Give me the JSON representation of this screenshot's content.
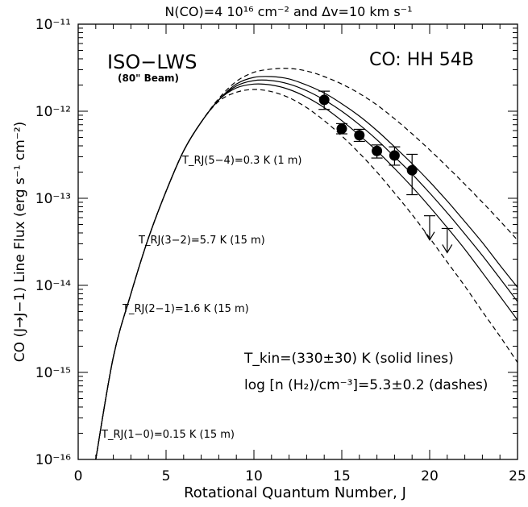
{
  "chart_data": {
    "type": "scatter",
    "title": "N(CO)=4 10¹⁶ cm⁻² and Δv=10 km s⁻¹",
    "xlabel": "Rotational Quantum Number, J",
    "ylabel": "CO (J→J−1) Line Flux (erg s⁻¹ cm⁻²)",
    "xlim": [
      0,
      25
    ],
    "ylim": [
      1e-16,
      1e-11
    ],
    "yscale": "log",
    "x_ticks": [
      "0",
      "5",
      "10",
      "15",
      "20",
      "25"
    ],
    "y_ticks": [
      "10⁻¹¹",
      "10⁻¹²",
      "10⁻¹³",
      "10⁻¹⁴",
      "10⁻¹⁵",
      "10⁻¹⁶"
    ],
    "instrument_label": "ISO−LWS",
    "beam_label": "(80\" Beam)",
    "object_label": "CO:  HH 54B",
    "transition_annotations": [
      "T_RJ(5−4)=0.3 K (1 m)",
      "T_RJ(3−2)=5.7 K (15 m)",
      "T_RJ(2−1)=1.6 K (15 m)",
      "T_RJ(1−0)=0.15 K (15 m)"
    ],
    "fit_text_1": "T_kin=(330±30) K (solid lines)",
    "fit_text_2": "log [n (H₂)/cm⁻³]=5.3±0.2 (dashes)",
    "observations": [
      {
        "J": 14,
        "flux": 1.35e-12,
        "err_low": 1.05e-12,
        "err_high": 1.7e-12
      },
      {
        "J": 15,
        "flux": 6.3e-13,
        "err_low": 5.5e-13,
        "err_high": 7.2e-13
      },
      {
        "J": 16,
        "flux": 5.3e-13,
        "err_low": 4.5e-13,
        "err_high": 6.2e-13
      },
      {
        "J": 17,
        "flux": 3.5e-13,
        "err_low": 2.9e-13,
        "err_high": 4.1e-13
      },
      {
        "J": 18,
        "flux": 3.1e-13,
        "err_low": 2.4e-13,
        "err_high": 3.9e-13
      },
      {
        "J": 19,
        "flux": 2.1e-13,
        "err_low": 1.1e-13,
        "err_high": 3.2e-13
      }
    ],
    "upper_limits": [
      {
        "J": 20,
        "flux": 6.3e-14
      },
      {
        "J": 21,
        "flux": 4.5e-14
      }
    ],
    "series": [
      {
        "style": "solid",
        "x": [
          1,
          2,
          3,
          4,
          5,
          6,
          7,
          8,
          9,
          10,
          11,
          12,
          13,
          14,
          15,
          16,
          17,
          18,
          19,
          20,
          21,
          22,
          23,
          24,
          25
        ],
        "values": [
          1e-16,
          1.5e-15,
          8e-15,
          3.5e-14,
          1.2e-13,
          3.5e-13,
          7.5e-13,
          1.35e-12,
          1.85e-12,
          2.05e-12,
          2e-12,
          1.78e-12,
          1.45e-12,
          1.1e-12,
          7.8e-13,
          5.3e-13,
          3.5e-13,
          2.2e-13,
          1.35e-13,
          8e-14,
          4.6e-14,
          2.6e-14,
          1.4e-14,
          7.5e-15,
          4e-15
        ]
      },
      {
        "style": "solid",
        "x": [
          1,
          2,
          3,
          4,
          5,
          6,
          7,
          8,
          9,
          10,
          11,
          12,
          13,
          14,
          15,
          16,
          17,
          18,
          19,
          20,
          21,
          22,
          23,
          24,
          25
        ],
        "values": [
          1e-16,
          1.5e-15,
          8e-15,
          3.5e-14,
          1.2e-13,
          3.5e-13,
          7.5e-13,
          1.35e-12,
          1.95e-12,
          2.25e-12,
          2.25e-12,
          2.05e-12,
          1.72e-12,
          1.35e-12,
          1e-12,
          7e-13,
          4.7e-13,
          3e-13,
          1.9e-13,
          1.15e-13,
          6.8e-14,
          3.9e-14,
          2.2e-14,
          1.2e-14,
          6.5e-15
        ]
      },
      {
        "style": "solid",
        "x": [
          1,
          2,
          3,
          4,
          5,
          6,
          7,
          8,
          9,
          10,
          11,
          12,
          13,
          14,
          15,
          16,
          17,
          18,
          19,
          20,
          21,
          22,
          23,
          24,
          25
        ],
        "values": [
          1e-16,
          1.5e-15,
          8e-15,
          3.5e-14,
          1.2e-13,
          3.5e-13,
          7.5e-13,
          1.35e-12,
          2.05e-12,
          2.45e-12,
          2.5e-12,
          2.35e-12,
          2e-12,
          1.62e-12,
          1.22e-12,
          8.8e-13,
          6e-13,
          3.9e-13,
          2.5e-13,
          1.55e-13,
          9.3e-14,
          5.4e-14,
          3.1e-14,
          1.7e-14,
          9.5e-15
        ]
      },
      {
        "style": "dashed",
        "x": [
          1,
          2,
          3,
          4,
          5,
          6,
          7,
          8,
          9,
          10,
          11,
          12,
          13,
          14,
          15,
          16,
          17,
          18,
          19,
          20,
          21,
          22,
          23,
          24,
          25
        ],
        "values": [
          1e-16,
          1.5e-15,
          8e-15,
          3.5e-14,
          1.2e-13,
          3.5e-13,
          7.5e-13,
          1.3e-12,
          1.65e-12,
          1.78e-12,
          1.68e-12,
          1.43e-12,
          1.1e-12,
          7.8e-13,
          5.2e-13,
          3.3e-13,
          2e-13,
          1.15e-13,
          6.5e-14,
          3.5e-14,
          1.85e-14,
          9.8e-15,
          5e-15,
          2.6e-15,
          1.3e-15
        ]
      },
      {
        "style": "dashed",
        "x": [
          1,
          2,
          3,
          4,
          5,
          6,
          7,
          8,
          9,
          10,
          11,
          12,
          13,
          14,
          15,
          16,
          17,
          18,
          19,
          20,
          21,
          22,
          23,
          24,
          25
        ],
        "values": [
          1e-16,
          1.5e-15,
          8e-15,
          3.5e-14,
          1.2e-13,
          3.5e-13,
          7.5e-13,
          1.4e-12,
          2.2e-12,
          2.8e-12,
          3.05e-12,
          3.1e-12,
          2.9e-12,
          2.5e-12,
          2.05e-12,
          1.6e-12,
          1.18e-12,
          8.2e-13,
          5.5e-13,
          3.6e-13,
          2.3e-13,
          1.45e-13,
          9e-14,
          5.5e-14,
          3.3e-14
        ]
      }
    ]
  }
}
